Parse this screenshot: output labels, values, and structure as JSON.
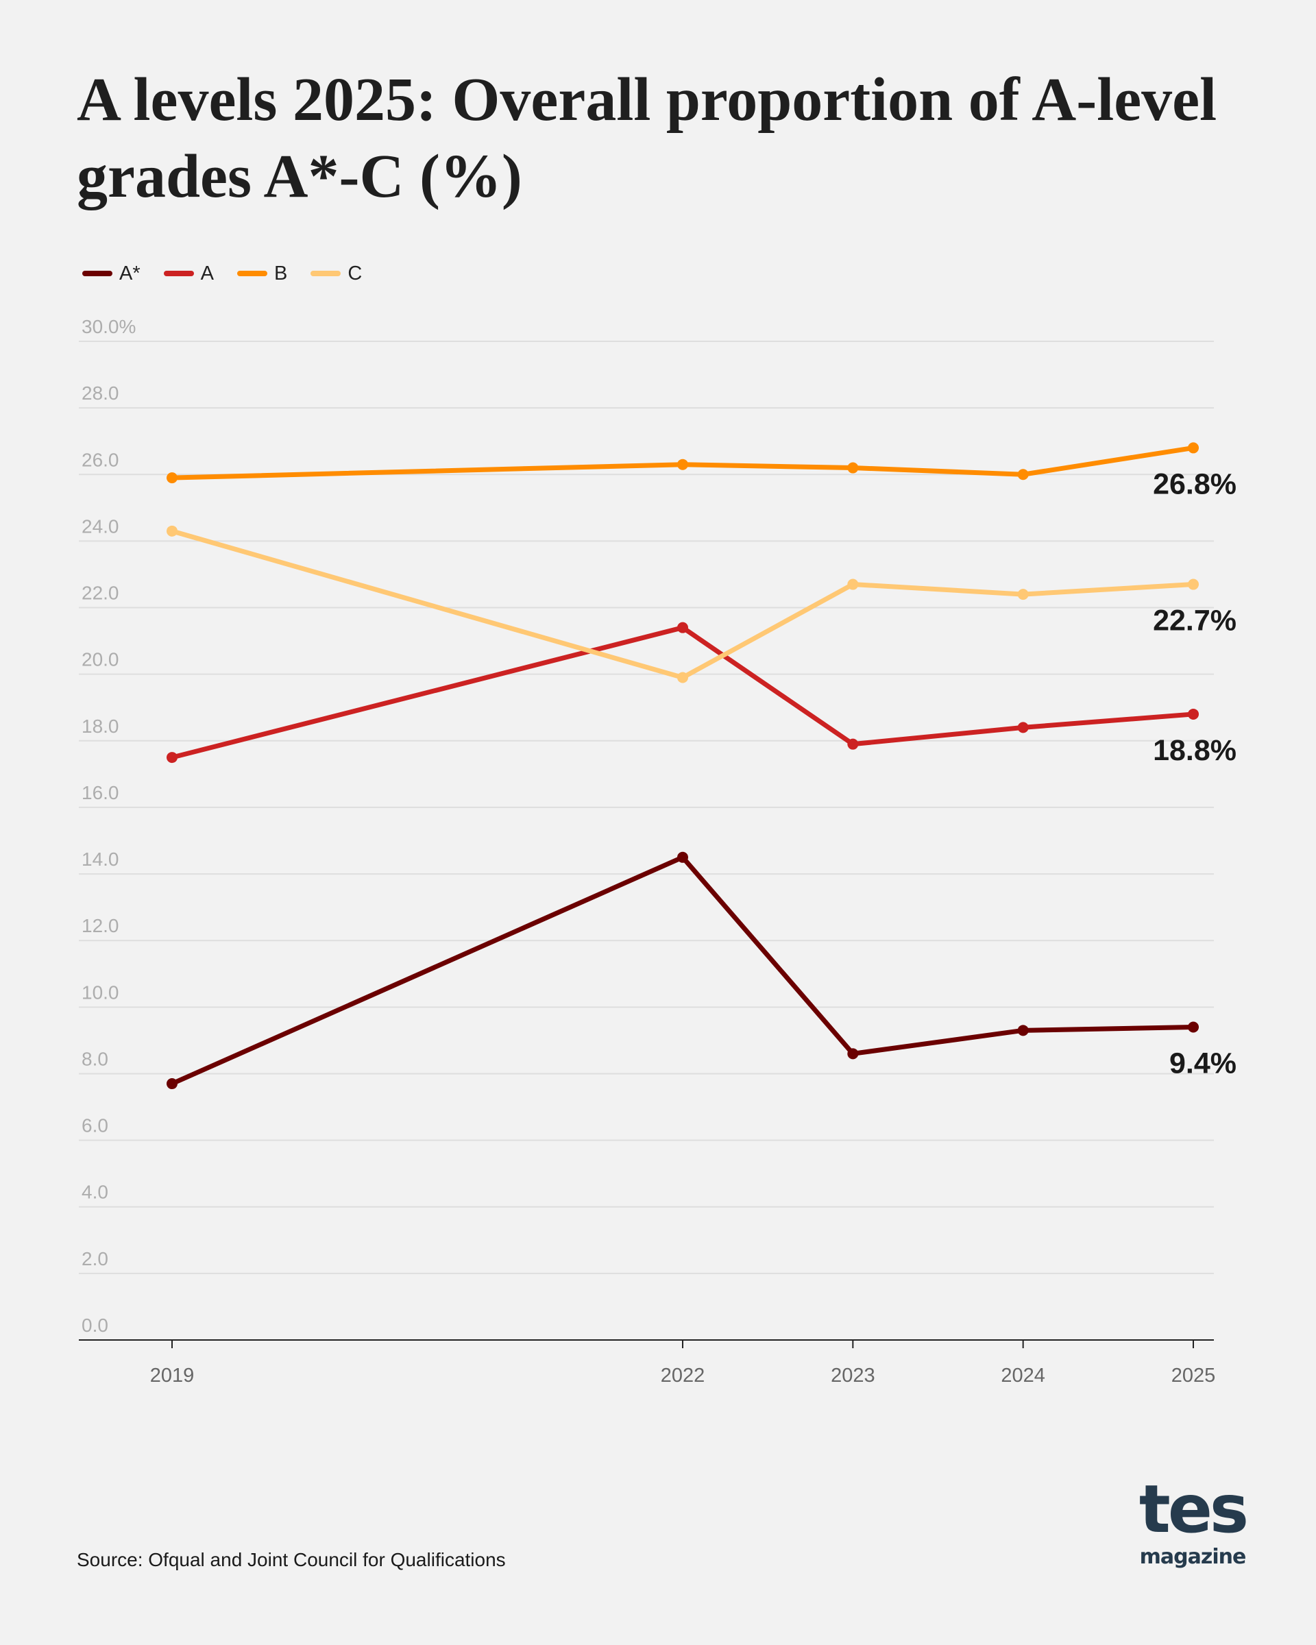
{
  "title": "A levels 2025: Overall proportion of A-level grades A*-C (%)",
  "source": "Source: Ofqual and Joint Council for Qualifications",
  "logo": {
    "top": "tes",
    "bottom": "magazine"
  },
  "chart_data": {
    "type": "line",
    "x": [
      2019,
      2022,
      2023,
      2024,
      2025
    ],
    "x_tick_labels": [
      "2019",
      "2022",
      "2023",
      "2024",
      "2025"
    ],
    "y_tick_labels": [
      "0.0",
      "2.0",
      "4.0",
      "6.0",
      "8.0",
      "10.0",
      "12.0",
      "14.0",
      "16.0",
      "18.0",
      "20.0",
      "22.0",
      "24.0",
      "26.0",
      "28.0",
      "30.0%"
    ],
    "ylim": [
      0,
      30
    ],
    "grid": true,
    "legend": "top-left",
    "series": [
      {
        "name": "A*",
        "color": "#6b0000",
        "values": [
          7.7,
          14.5,
          8.6,
          9.3,
          9.4
        ],
        "end_label": "9.4%"
      },
      {
        "name": "A",
        "color": "#cc2222",
        "values": [
          17.5,
          21.4,
          17.9,
          18.4,
          18.8
        ],
        "end_label": "18.8%"
      },
      {
        "name": "B",
        "color": "#ff8c00",
        "values": [
          25.9,
          26.3,
          26.2,
          26.0,
          26.8
        ],
        "end_label": "26.8%"
      },
      {
        "name": "C",
        "color": "#ffc874",
        "values": [
          24.3,
          19.9,
          22.7,
          22.4,
          22.7
        ],
        "end_label": "22.7%"
      }
    ]
  }
}
